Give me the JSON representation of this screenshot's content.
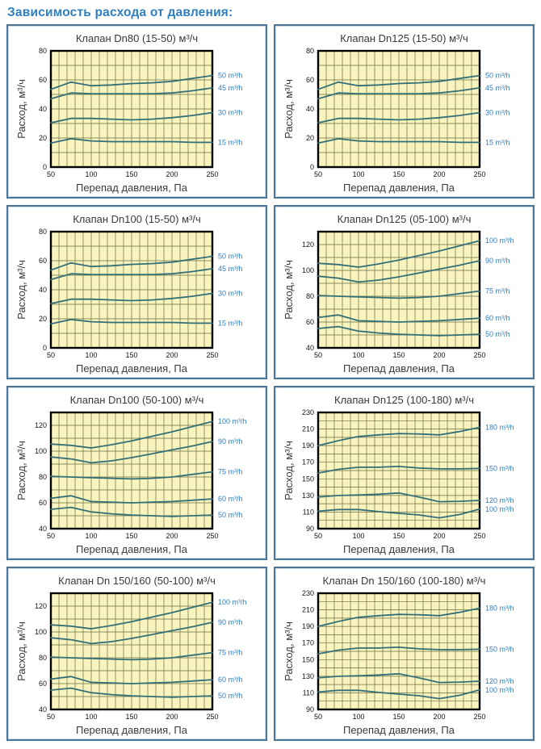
{
  "page": {
    "heading": "Зависимость расхода от давления:"
  },
  "colors": {
    "accent": "#2e7fc0",
    "panel_border": "#4d7795",
    "plot_bg": "#f9f4bd",
    "grid": "#6e6c48",
    "curve": "#336f78",
    "legend_text": "#2e7fc0",
    "plot_frame": "#000000"
  },
  "chart_data": [
    {
      "type": "line",
      "title": "Клапан Dn80 (15-50) м³/ч",
      "xlabel": "Перепад давления, Па",
      "ylabel": "Расход, м³/ч",
      "x": [
        50,
        75,
        100,
        125,
        150,
        175,
        200,
        225,
        250
      ],
      "xlim": [
        50,
        250
      ],
      "xticks": [
        50,
        100,
        150,
        200,
        250
      ],
      "ylim": [
        0,
        80
      ],
      "yticks": [
        0,
        20,
        40,
        60,
        80
      ],
      "grid_step": 10,
      "grid": true,
      "legend_position": "right",
      "series": [
        {
          "name": "50 m³/h",
          "values": [
            53.5,
            58.5,
            56,
            56.5,
            57.5,
            58,
            59,
            61,
            63
          ]
        },
        {
          "name": "45 m³/h",
          "values": [
            47,
            51,
            50.5,
            50.5,
            50.5,
            50.5,
            51,
            52.5,
            54.5
          ]
        },
        {
          "name": "30 m³/h",
          "values": [
            30.5,
            33.5,
            33.5,
            33,
            32.5,
            33,
            34,
            35.5,
            37.5
          ]
        },
        {
          "name": "15 m³/h",
          "values": [
            16.5,
            19.5,
            18,
            17.5,
            17.5,
            17.5,
            17.5,
            17,
            17
          ]
        }
      ]
    },
    {
      "type": "line",
      "title": "Клапан Dn125 (15-50) м³/ч",
      "xlabel": "Перепад давления, Па",
      "ylabel": "Расход, м³/ч",
      "x": [
        50,
        75,
        100,
        125,
        150,
        175,
        200,
        225,
        250
      ],
      "xlim": [
        50,
        250
      ],
      "xticks": [
        50,
        100,
        150,
        200,
        250
      ],
      "ylim": [
        0,
        80
      ],
      "yticks": [
        0,
        20,
        40,
        60,
        80
      ],
      "grid_step": 10,
      "grid": true,
      "legend_position": "right",
      "series": [
        {
          "name": "50 m³/h",
          "values": [
            53.5,
            58.5,
            56,
            56.5,
            57.5,
            58,
            59,
            61,
            63
          ]
        },
        {
          "name": "45 m³/h",
          "values": [
            47,
            51,
            50.5,
            50.5,
            50.5,
            50.5,
            51,
            52.5,
            54.5
          ]
        },
        {
          "name": "30 m³/h",
          "values": [
            30.5,
            33.5,
            33.5,
            33,
            32.5,
            33,
            34,
            35.5,
            37.5
          ]
        },
        {
          "name": "15 m³/h",
          "values": [
            16.5,
            19.5,
            18,
            17.5,
            17.5,
            17.5,
            17.5,
            17,
            17
          ]
        }
      ]
    },
    {
      "type": "line",
      "title": "Клапан Dn100 (15-50) м³/ч",
      "xlabel": "Перепад давления, Па",
      "ylabel": "Расход, м³/ч",
      "x": [
        50,
        75,
        100,
        125,
        150,
        175,
        200,
        225,
        250
      ],
      "xlim": [
        50,
        250
      ],
      "xticks": [
        50,
        100,
        150,
        200,
        250
      ],
      "ylim": [
        0,
        80
      ],
      "yticks": [
        0,
        20,
        40,
        60,
        80
      ],
      "grid_step": 10,
      "grid": true,
      "legend_position": "right",
      "series": [
        {
          "name": "50 m³/h",
          "values": [
            53.5,
            58.5,
            56,
            56.5,
            57.5,
            58,
            59,
            61,
            63
          ]
        },
        {
          "name": "45 m³/h",
          "values": [
            47,
            51,
            50.5,
            50.5,
            50.5,
            50.5,
            51,
            52.5,
            54.5
          ]
        },
        {
          "name": "30 m³/h",
          "values": [
            30.5,
            33.5,
            33.5,
            33,
            32.5,
            33,
            34,
            35.5,
            37.5
          ]
        },
        {
          "name": "15 m³/h",
          "values": [
            16.5,
            19.5,
            18,
            17.5,
            17.5,
            17.5,
            17.5,
            17,
            17
          ]
        }
      ]
    },
    {
      "type": "line",
      "title": "Клапан Dn125 (05-100) м³/ч",
      "xlabel": "Перепад давления, Па",
      "ylabel": "Расход, м³/ч",
      "x": [
        50,
        75,
        100,
        125,
        150,
        175,
        200,
        225,
        250
      ],
      "xlim": [
        50,
        250
      ],
      "xticks": [
        50,
        100,
        150,
        200,
        250
      ],
      "ylim": [
        40,
        130
      ],
      "yticks": [
        40,
        60,
        80,
        100,
        120
      ],
      "grid_step": 10,
      "grid": true,
      "legend_position": "right",
      "series": [
        {
          "name": "100 m³/h",
          "values": [
            105.5,
            104.5,
            102.5,
            105,
            108,
            111.5,
            115,
            119,
            123
          ]
        },
        {
          "name": "90 m³/h",
          "values": [
            95.5,
            94,
            91,
            92.5,
            95,
            98,
            101,
            104,
            107.5
          ]
        },
        {
          "name": "75 m³/h",
          "values": [
            80.5,
            80,
            79.5,
            79,
            78.5,
            79,
            80,
            82,
            84
          ]
        },
        {
          "name": "60 m³/h",
          "values": [
            63.5,
            65.5,
            61,
            60.5,
            60,
            60.5,
            61,
            62,
            63
          ]
        },
        {
          "name": "50 m³/h",
          "values": [
            55,
            56.5,
            53,
            51.5,
            50.5,
            50,
            49.5,
            50,
            50.5
          ]
        }
      ]
    },
    {
      "type": "line",
      "title": "Клапан Dn100 (50-100) м³/ч",
      "xlabel": "Перепад давления, Па",
      "ylabel": "Расход, м³/ч",
      "x": [
        50,
        75,
        100,
        125,
        150,
        175,
        200,
        225,
        250
      ],
      "xlim": [
        50,
        250
      ],
      "xticks": [
        50,
        100,
        150,
        200,
        250
      ],
      "ylim": [
        40,
        130
      ],
      "yticks": [
        40,
        60,
        80,
        100,
        120
      ],
      "grid_step": 10,
      "grid": true,
      "legend_position": "right",
      "series": [
        {
          "name": "100 m³/h",
          "values": [
            105.5,
            104.5,
            102.5,
            105,
            108,
            111.5,
            115,
            119,
            123
          ]
        },
        {
          "name": "90 m³/h",
          "values": [
            95.5,
            94,
            91,
            92.5,
            95,
            98,
            101,
            104,
            107.5
          ]
        },
        {
          "name": "75 m³/h",
          "values": [
            80.5,
            80,
            79.5,
            79,
            78.5,
            79,
            80,
            82,
            84
          ]
        },
        {
          "name": "60 m³/h",
          "values": [
            63.5,
            65.5,
            61,
            60.5,
            60,
            60.5,
            61,
            62,
            63
          ]
        },
        {
          "name": "50 m³/h",
          "values": [
            55,
            56.5,
            53,
            51.5,
            50.5,
            50,
            49.5,
            50,
            50.5
          ]
        }
      ]
    },
    {
      "type": "line",
      "title": "Клапан Dn125 (100-180) м³/ч",
      "xlabel": "Перепад давления, Па",
      "ylabel": "Расход, м³/ч",
      "x": [
        50,
        75,
        100,
        125,
        150,
        175,
        200,
        225,
        250
      ],
      "xlim": [
        50,
        250
      ],
      "xticks": [
        50,
        100,
        150,
        200,
        250
      ],
      "ylim": [
        90,
        230
      ],
      "yticks": [
        90,
        110,
        130,
        150,
        170,
        190,
        210,
        230
      ],
      "grid_step": 10,
      "grid": true,
      "legend_position": "right",
      "series": [
        {
          "name": "180 m³/h",
          "values": [
            190,
            196,
            201,
            203,
            204.5,
            204,
            203,
            207,
            212
          ]
        },
        {
          "name": "150 m³/h",
          "values": [
            157,
            161.5,
            164,
            164,
            165,
            163,
            162,
            162,
            162.5
          ]
        },
        {
          "name": "120 m³/h",
          "values": [
            128,
            130,
            130.5,
            131.5,
            133,
            128,
            122.5,
            123,
            124
          ]
        },
        {
          "name": "100 m³/h",
          "values": [
            111,
            113,
            113,
            110.5,
            108.5,
            106.5,
            103,
            107,
            113.5
          ]
        }
      ]
    },
    {
      "type": "line",
      "title": "Клапан Dn 150/160 (50-100) м³/ч",
      "xlabel": "Перепад давления, Па",
      "ylabel": "Расход, м³/ч",
      "x": [
        50,
        75,
        100,
        125,
        150,
        175,
        200,
        225,
        250
      ],
      "xlim": [
        50,
        250
      ],
      "xticks": [
        50,
        100,
        150,
        200,
        250
      ],
      "ylim": [
        40,
        130
      ],
      "yticks": [
        40,
        60,
        80,
        100,
        120
      ],
      "grid_step": 10,
      "grid": true,
      "legend_position": "right",
      "series": [
        {
          "name": "100 m³/h",
          "values": [
            105.5,
            104.5,
            102.5,
            105,
            108,
            111.5,
            115,
            119,
            123
          ]
        },
        {
          "name": "90 m³/h",
          "values": [
            95.5,
            94,
            91,
            92.5,
            95,
            98,
            101,
            104,
            107.5
          ]
        },
        {
          "name": "75 m³/h",
          "values": [
            80.5,
            80,
            79.5,
            79,
            78.5,
            79,
            80,
            82,
            84
          ]
        },
        {
          "name": "60 m³/h",
          "values": [
            63.5,
            65.5,
            61,
            60.5,
            60,
            60.5,
            61,
            62,
            63
          ]
        },
        {
          "name": "50 m³/h",
          "values": [
            55,
            56.5,
            53,
            51.5,
            50.5,
            50,
            49.5,
            50,
            50.5
          ]
        }
      ]
    },
    {
      "type": "line",
      "title": "Клапан Dn 150/160 (100-180) м³/ч",
      "xlabel": "Перепад давления, Па",
      "ylabel": "Расход, м³/ч",
      "x": [
        50,
        75,
        100,
        125,
        150,
        175,
        200,
        225,
        250
      ],
      "xlim": [
        50,
        250
      ],
      "xticks": [
        50,
        100,
        150,
        200,
        250
      ],
      "ylim": [
        90,
        230
      ],
      "yticks": [
        90,
        110,
        130,
        150,
        170,
        190,
        210,
        230
      ],
      "grid_step": 10,
      "grid": true,
      "legend_position": "right",
      "series": [
        {
          "name": "180 m³/h",
          "values": [
            190,
            196,
            201,
            203,
            204.5,
            204,
            203,
            207,
            212
          ]
        },
        {
          "name": "150 m³/h",
          "values": [
            157,
            161.5,
            164,
            164,
            165,
            163,
            162,
            162,
            162.5
          ]
        },
        {
          "name": "120 m³/h",
          "values": [
            128,
            130,
            130.5,
            131.5,
            133,
            128,
            122.5,
            123,
            124
          ]
        },
        {
          "name": "100 m³/h",
          "values": [
            111,
            113,
            113,
            110.5,
            108.5,
            106.5,
            103,
            107,
            113.5
          ]
        }
      ]
    }
  ]
}
